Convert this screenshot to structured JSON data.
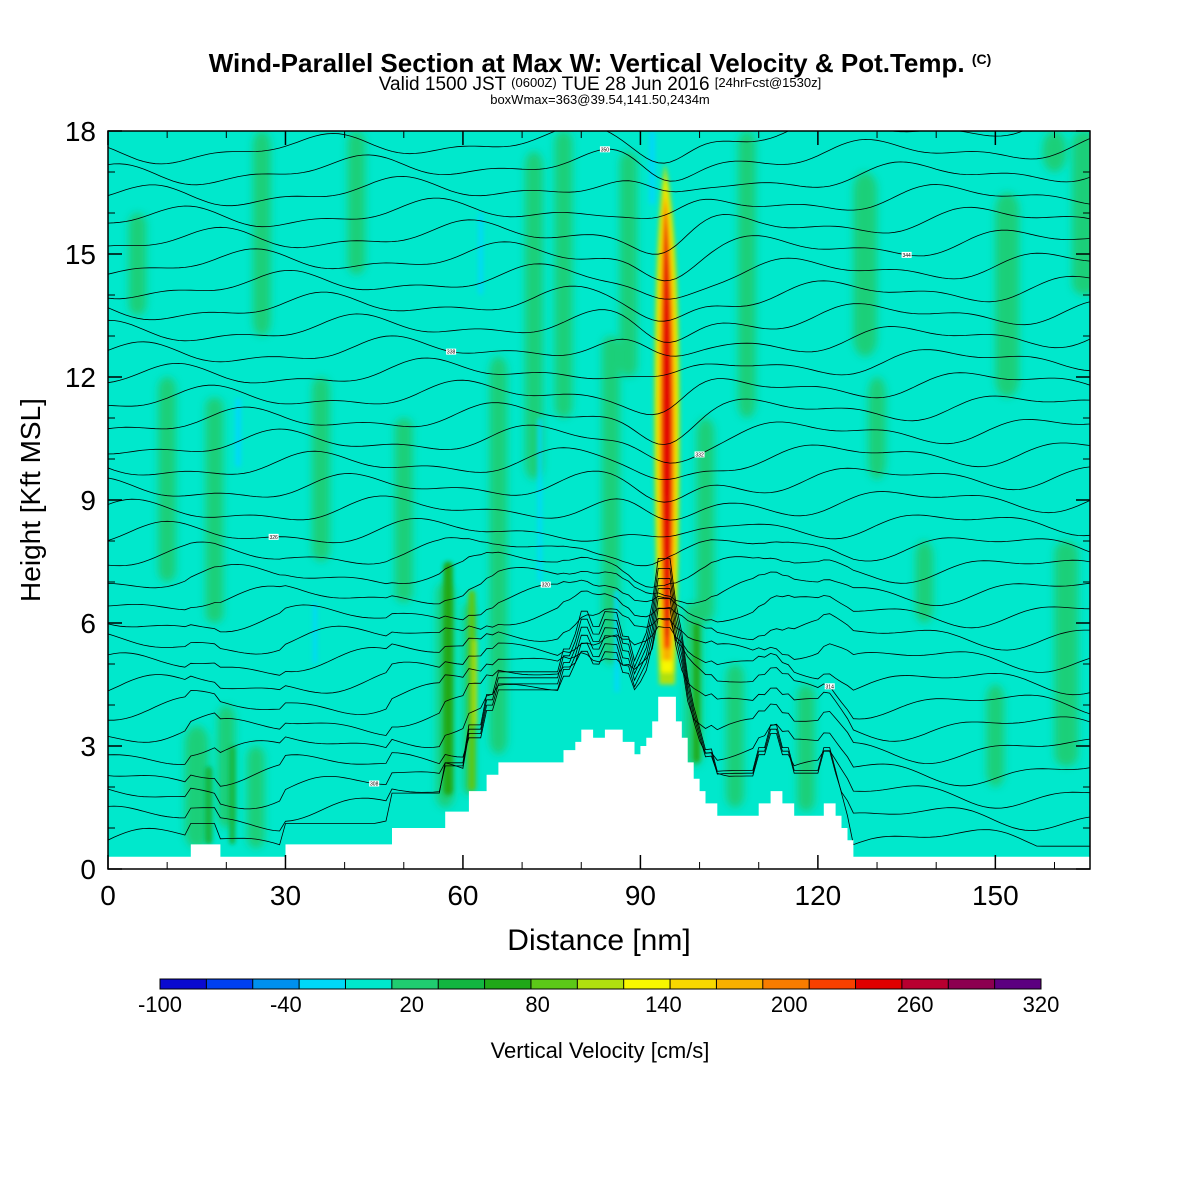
{
  "header": {
    "title_main": "Wind-Parallel Section at Max W: Vertical Velocity & Pot.Temp.",
    "title_mark": "(C)",
    "valid_pre": "Valid 1500 JST",
    "valid_utc": "(0600Z)",
    "valid_date": "TUE 28 Jun 2016",
    "valid_fcst": "[24hrFcst@1530z]",
    "box_info": "boxWmax=363@39.54,141.50,2434m"
  },
  "chart_data": {
    "type": "heatmap",
    "xlabel": "Distance [nm]",
    "ylabel": "Height [Kft MSL]",
    "xlim": [
      0,
      166
    ],
    "ylim": [
      0,
      18
    ],
    "xticks": [
      0,
      30,
      60,
      90,
      120,
      150
    ],
    "yticks": [
      0,
      3,
      6,
      9,
      12,
      15,
      18
    ],
    "grid": false,
    "colorbar": {
      "label": "Vertical Velocity [cm/s]",
      "min": -100,
      "max": 320,
      "tick_labels": [
        "-100",
        "-40",
        "20",
        "80",
        "140",
        "200",
        "260",
        "320"
      ],
      "colors": [
        "#0a0ad0",
        "#0040f0",
        "#0090ee",
        "#00d8f8",
        "#00e8cc",
        "#20cc70",
        "#12b640",
        "#20a818",
        "#5cc818",
        "#b0e010",
        "#f8f800",
        "#f8d800",
        "#f8b000",
        "#f87c00",
        "#f84000",
        "#e00000",
        "#b80030",
        "#8c0050",
        "#5c0080"
      ]
    },
    "max_updraft": {
      "x": 94.5,
      "z_bottom": 4.5,
      "z_top": 17.2,
      "value": 363
    },
    "terrain": [
      [
        0,
        0.3
      ],
      [
        14,
        0.3
      ],
      [
        14,
        0.6
      ],
      [
        19,
        0.6
      ],
      [
        19,
        0.3
      ],
      [
        30,
        0.3
      ],
      [
        30,
        0.6
      ],
      [
        48,
        0.6
      ],
      [
        48,
        1.0
      ],
      [
        57,
        1.0
      ],
      [
        57,
        1.4
      ],
      [
        61,
        1.4
      ],
      [
        61,
        1.9
      ],
      [
        64,
        1.9
      ],
      [
        64,
        2.3
      ],
      [
        66,
        2.3
      ],
      [
        66,
        2.6
      ],
      [
        70,
        2.6
      ],
      [
        70,
        2.6
      ],
      [
        77,
        2.6
      ],
      [
        77,
        2.9
      ],
      [
        79,
        2.9
      ],
      [
        79,
        3.1
      ],
      [
        80,
        3.1
      ],
      [
        80,
        3.4
      ],
      [
        82,
        3.4
      ],
      [
        82,
        3.2
      ],
      [
        84,
        3.2
      ],
      [
        84,
        3.4
      ],
      [
        87,
        3.4
      ],
      [
        87,
        3.1
      ],
      [
        89,
        3.1
      ],
      [
        89,
        2.8
      ],
      [
        90,
        2.8
      ],
      [
        90,
        3.0
      ],
      [
        91,
        3.0
      ],
      [
        91,
        3.2
      ],
      [
        92,
        3.2
      ],
      [
        92,
        3.6
      ],
      [
        93,
        3.6
      ],
      [
        93,
        4.2
      ],
      [
        96,
        4.2
      ],
      [
        96,
        3.6
      ],
      [
        97,
        3.6
      ],
      [
        97,
        3.2
      ],
      [
        98,
        3.2
      ],
      [
        98,
        2.6
      ],
      [
        99,
        2.6
      ],
      [
        99,
        2.2
      ],
      [
        100,
        2.2
      ],
      [
        100,
        1.9
      ],
      [
        101,
        1.9
      ],
      [
        101,
        1.6
      ],
      [
        103,
        1.6
      ],
      [
        103,
        1.3
      ],
      [
        110,
        1.3
      ],
      [
        110,
        1.6
      ],
      [
        112,
        1.6
      ],
      [
        112,
        1.9
      ],
      [
        114,
        1.9
      ],
      [
        114,
        1.6
      ],
      [
        116,
        1.6
      ],
      [
        116,
        1.3
      ],
      [
        121,
        1.3
      ],
      [
        121,
        1.6
      ],
      [
        123,
        1.6
      ],
      [
        123,
        1.3
      ],
      [
        124,
        1.3
      ],
      [
        124,
        1.0
      ],
      [
        125,
        1.0
      ],
      [
        125,
        0.7
      ],
      [
        126,
        0.7
      ],
      [
        126,
        0.3
      ],
      [
        166,
        0.3
      ]
    ],
    "theta_line_count": 32,
    "theta_labels": [
      "308",
      "314",
      "320",
      "326",
      "332",
      "338",
      "344",
      "350"
    ]
  }
}
